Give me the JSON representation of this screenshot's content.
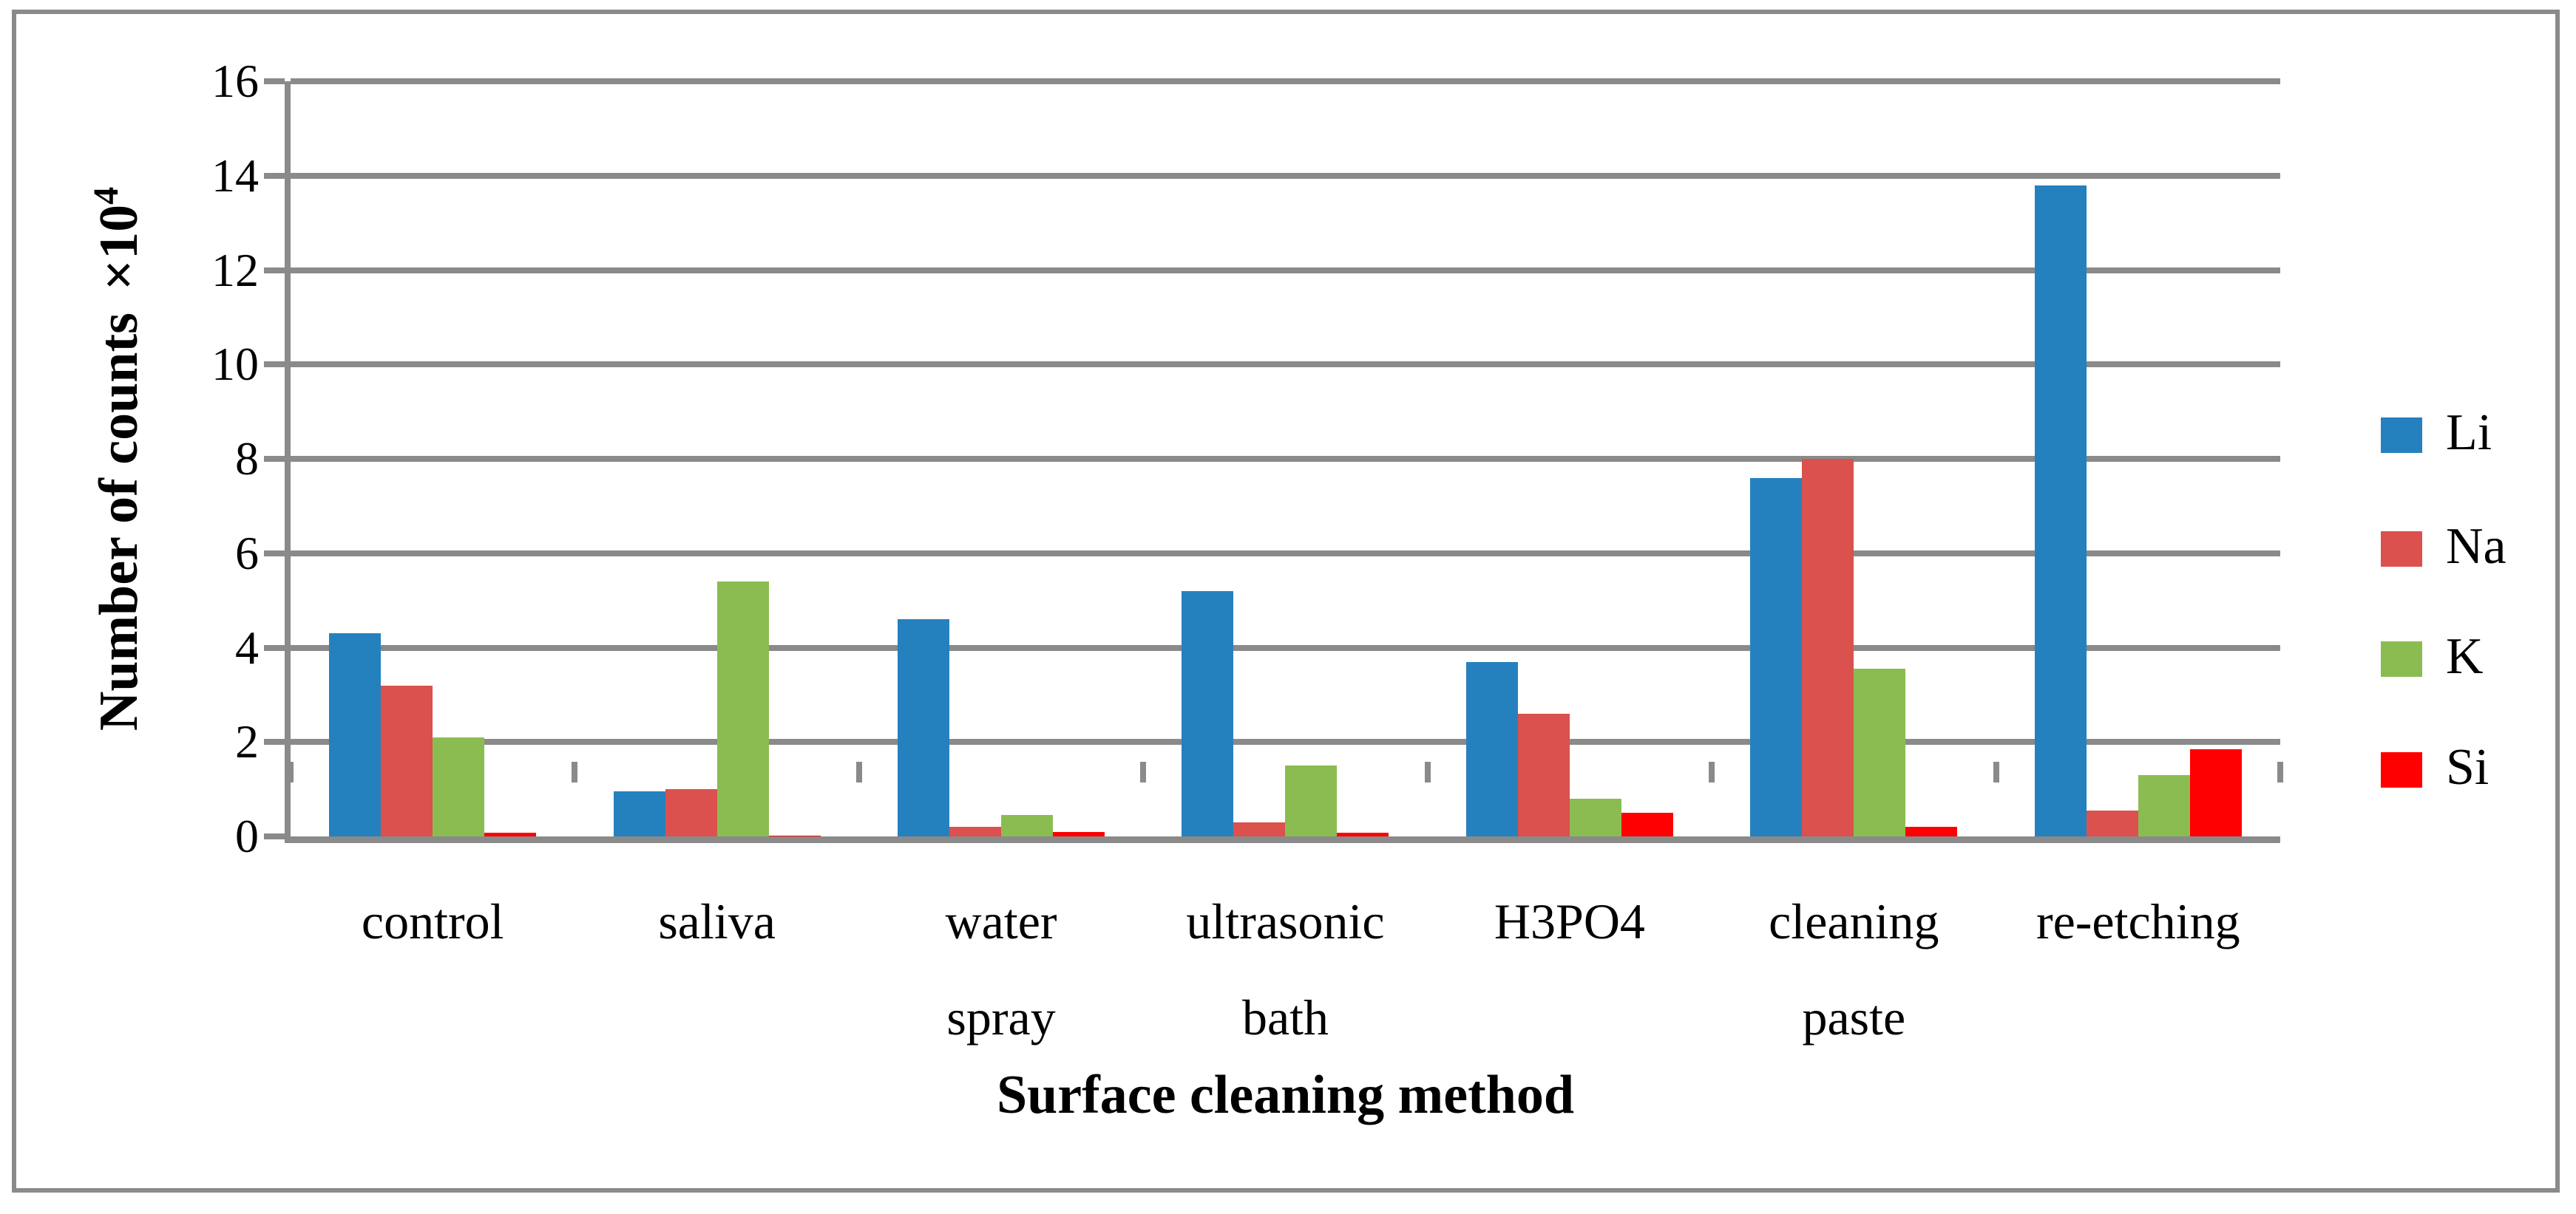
{
  "chart_data": {
    "type": "bar",
    "title": "",
    "xlabel": "Surface cleaning method",
    "ylabel": "Number of counts ×10⁴",
    "ylabel_parts": {
      "label": "Number of counts",
      "times": "×10",
      "exp": "4"
    },
    "categories": [
      "control",
      "saliva",
      "water spray",
      "ultrasonic bath",
      "H3PO4",
      "cleaning paste",
      "re-etching"
    ],
    "category_label_lines": [
      [
        "control"
      ],
      [
        "saliva"
      ],
      [
        "water",
        "spray"
      ],
      [
        "ultrasonic",
        "bath"
      ],
      [
        "H3PO4"
      ],
      [
        "cleaning",
        "paste"
      ],
      [
        "re-etching"
      ]
    ],
    "series": [
      {
        "name": "Li",
        "color": "#2581BE",
        "values": [
          4.3,
          0.95,
          4.6,
          5.2,
          3.7,
          7.6,
          13.8
        ]
      },
      {
        "name": "Na",
        "color": "#DA514E",
        "values": [
          3.2,
          1.0,
          0.2,
          0.3,
          2.6,
          8.0,
          0.55
        ]
      },
      {
        "name": "K",
        "color": "#8BBC52",
        "values": [
          2.1,
          5.4,
          0.45,
          1.5,
          0.8,
          3.55,
          1.3
        ]
      },
      {
        "name": "Si",
        "color": "#FF0000",
        "values": [
          0.08,
          0.02,
          0.1,
          0.08,
          0.5,
          0.2,
          1.85
        ]
      }
    ],
    "ylim": [
      0,
      16
    ],
    "ytick_step": 2,
    "ytick_labels": [
      "0",
      "2",
      "4",
      "6",
      "8",
      "10",
      "12",
      "14",
      "16"
    ],
    "grid": "horizontal",
    "legend_position": "right",
    "axis_color": "#8A8A8A",
    "background_color": "#FFFFFF"
  }
}
